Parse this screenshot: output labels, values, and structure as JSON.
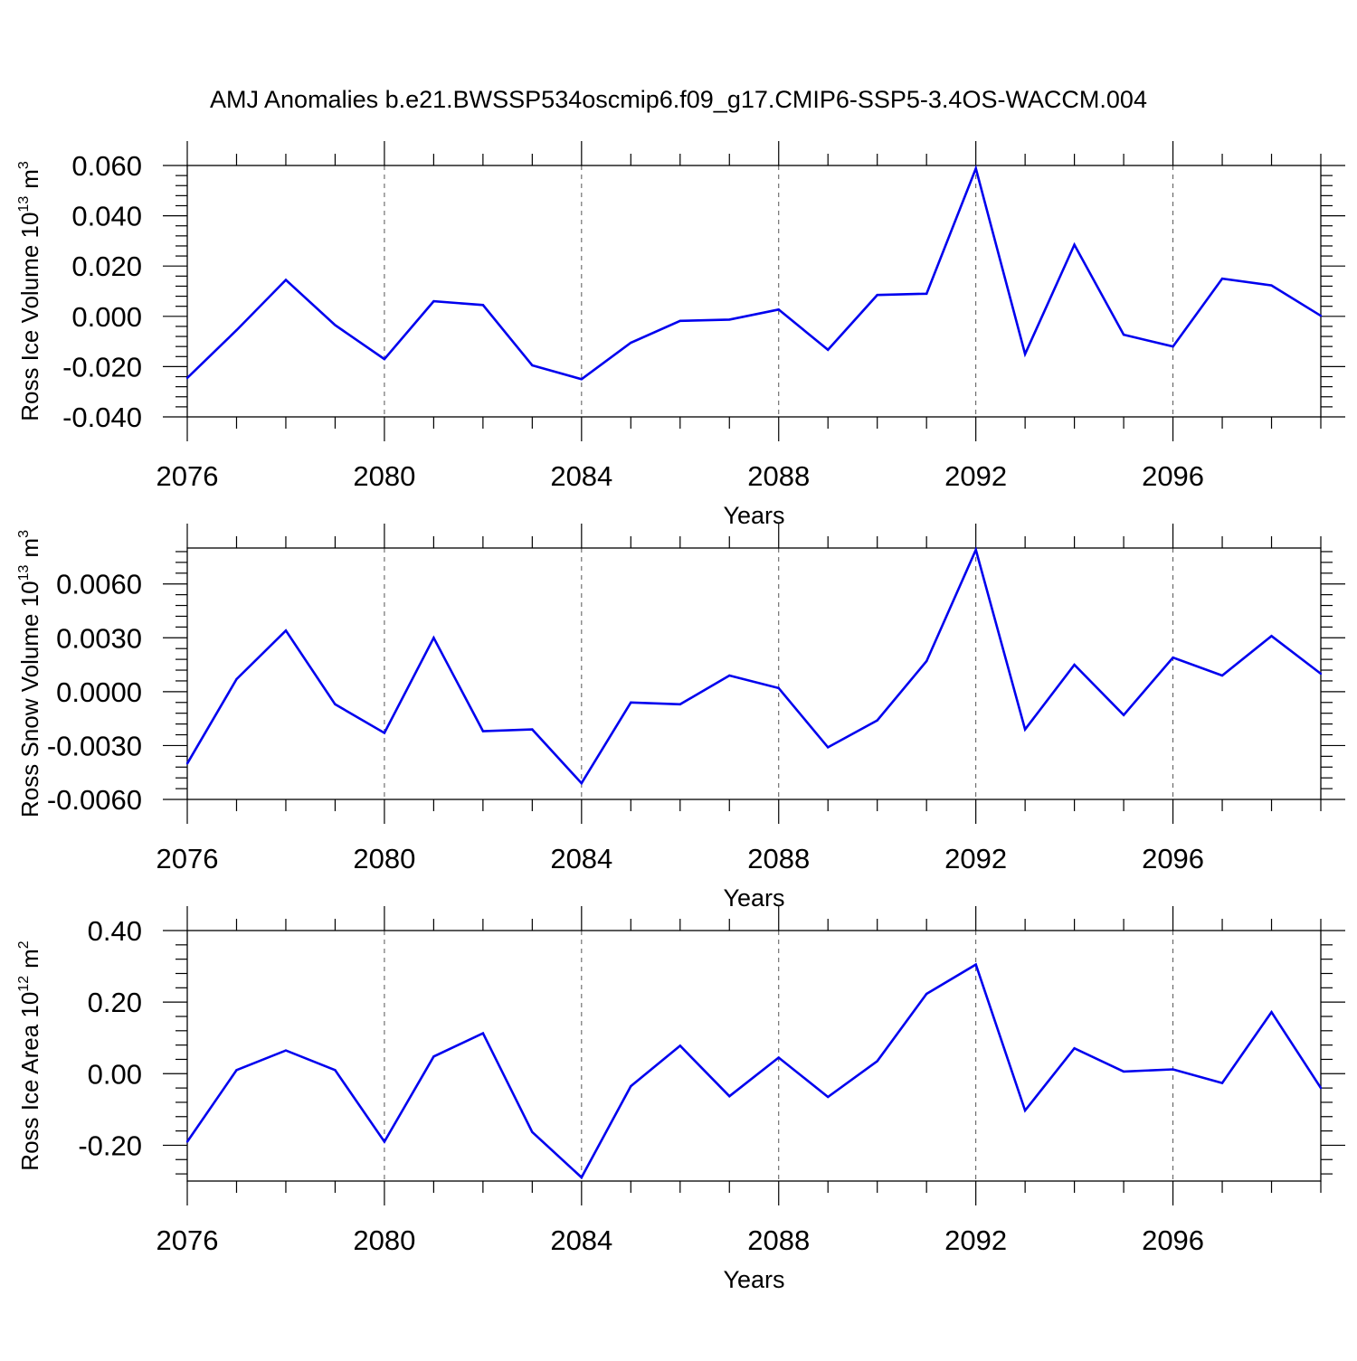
{
  "title": "AMJ Anomalies b.e21.BWSSP534oscmip6.f09_g17.CMIP6-SSP5-3.4OS-WACCM.004",
  "colors": {
    "line": "#0000ee",
    "axis": "#000000",
    "grid": "#555555"
  },
  "chart_data": [
    {
      "type": "line",
      "id": "ice-volume",
      "ylabel": "Ross Ice Volume 10",
      "ylabel_sup": "13",
      "ylabel_unit": "m",
      "ylabel_unit_sup": "3",
      "xlabel": "Years",
      "xlim": [
        2076,
        2099
      ],
      "ylim": [
        -0.04,
        0.06
      ],
      "yticks": [
        -0.04,
        -0.02,
        0.0,
        0.02,
        0.04,
        0.06
      ],
      "ytick_labels": [
        "-0.040",
        "-0.020",
        "0.000",
        "0.020",
        "0.040",
        "0.060"
      ],
      "xticks": [
        2076,
        2080,
        2084,
        2088,
        2092,
        2096
      ],
      "xtick_labels": [
        "2076",
        "2080",
        "2084",
        "2088",
        "2092",
        "2096"
      ],
      "grid_x": [
        2080,
        2084,
        2088,
        2092,
        2096
      ],
      "x": [
        2076,
        2077,
        2078,
        2079,
        2080,
        2081,
        2082,
        2083,
        2084,
        2085,
        2086,
        2087,
        2088,
        2089,
        2090,
        2091,
        2092,
        2093,
        2094,
        2095,
        2096,
        2097,
        2098,
        2099
      ],
      "values": [
        -0.0245,
        -0.0055,
        0.0145,
        -0.0035,
        -0.017,
        0.006,
        0.0045,
        -0.0195,
        -0.025,
        -0.0105,
        -0.0018,
        -0.0013,
        0.0027,
        -0.0133,
        0.0085,
        0.009,
        0.0588,
        -0.015,
        0.0285,
        -0.0073,
        -0.012,
        0.015,
        0.0123,
        0.0002
      ]
    },
    {
      "type": "line",
      "id": "snow-volume",
      "ylabel": "Ross Snow Volume 10",
      "ylabel_sup": "13",
      "ylabel_unit": "m",
      "ylabel_unit_sup": "3",
      "xlabel": "Years",
      "xlim": [
        2076,
        2099
      ],
      "ylim": [
        -0.006,
        0.008
      ],
      "yticks": [
        -0.006,
        -0.003,
        0.0,
        0.003,
        0.006
      ],
      "ytick_labels": [
        "-0.0060",
        "-0.0030",
        "0.0000",
        "0.0030",
        "0.0060"
      ],
      "xticks": [
        2076,
        2080,
        2084,
        2088,
        2092,
        2096
      ],
      "xtick_labels": [
        "2076",
        "2080",
        "2084",
        "2088",
        "2092",
        "2096"
      ],
      "grid_x": [
        2080,
        2084,
        2088,
        2092,
        2096
      ],
      "x": [
        2076,
        2077,
        2078,
        2079,
        2080,
        2081,
        2082,
        2083,
        2084,
        2085,
        2086,
        2087,
        2088,
        2089,
        2090,
        2091,
        2092,
        2093,
        2094,
        2095,
        2096,
        2097,
        2098,
        2099
      ],
      "values": [
        -0.004,
        0.0007,
        0.0034,
        -0.0007,
        -0.0023,
        0.003,
        -0.0022,
        -0.0021,
        -0.0051,
        -0.0006,
        -0.0007,
        0.0009,
        0.0002,
        -0.0031,
        -0.0016,
        0.0017,
        0.0079,
        -0.0021,
        0.0015,
        -0.0013,
        0.0019,
        0.0009,
        0.0031,
        0.001
      ]
    },
    {
      "type": "line",
      "id": "ice-area",
      "ylabel": "Ross Ice Area 10",
      "ylabel_sup": "12",
      "ylabel_unit": "m",
      "ylabel_unit_sup": "2",
      "xlabel": "Years",
      "xlim": [
        2076,
        2099
      ],
      "ylim": [
        -0.3,
        0.4
      ],
      "yticks": [
        -0.2,
        0.0,
        0.2,
        0.4
      ],
      "ytick_labels": [
        "-0.20",
        "0.00",
        "0.20",
        "0.40"
      ],
      "xticks": [
        2076,
        2080,
        2084,
        2088,
        2092,
        2096
      ],
      "xtick_labels": [
        "2076",
        "2080",
        "2084",
        "2088",
        "2092",
        "2096"
      ],
      "grid_x": [
        2080,
        2084,
        2088,
        2092,
        2096
      ],
      "x": [
        2076,
        2077,
        2078,
        2079,
        2080,
        2081,
        2082,
        2083,
        2084,
        2085,
        2086,
        2087,
        2088,
        2089,
        2090,
        2091,
        2092,
        2093,
        2094,
        2095,
        2096,
        2097,
        2098,
        2099
      ],
      "values": [
        -0.19,
        0.01,
        0.065,
        0.01,
        -0.19,
        0.048,
        0.113,
        -0.163,
        -0.29,
        -0.035,
        0.078,
        -0.063,
        0.045,
        -0.065,
        0.035,
        0.223,
        0.305,
        -0.103,
        0.071,
        0.006,
        0.012,
        -0.026,
        0.172,
        -0.04
      ]
    }
  ]
}
